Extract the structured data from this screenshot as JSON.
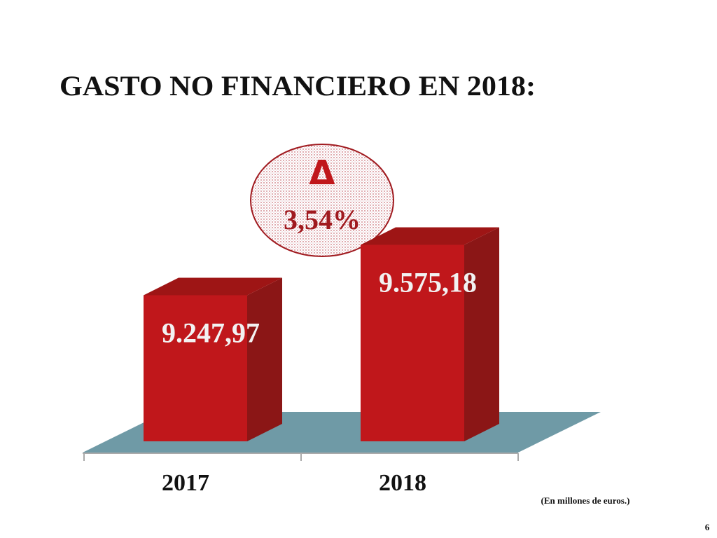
{
  "chart_data": {
    "type": "bar",
    "title": "GASTO NO FINANCIERO EN 2018:",
    "categories": [
      "2017",
      "2018"
    ],
    "values": [
      9247.97,
      9575.18
    ],
    "value_labels": [
      "9.247,97",
      "9.575,18"
    ],
    "color": "#c0171b",
    "ylim": [
      8300,
      9800
    ],
    "annotation": {
      "symbol": "Δ",
      "text": "3,54%"
    },
    "note": "(En millones de euros.)",
    "page_number": "6"
  }
}
